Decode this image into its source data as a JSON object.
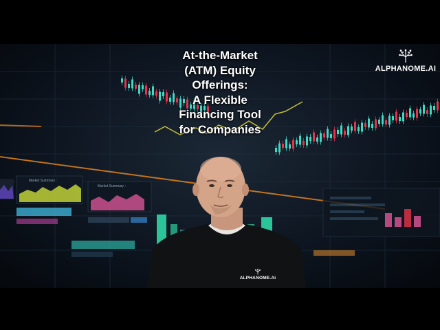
{
  "video": {
    "title_lines": [
      "At-the-Market",
      "(ATM) Equity",
      "Offerings:",
      "A Flexible",
      "Financing Tool",
      "for Companies"
    ],
    "brand_logo_text": "ALPHANOME.AI",
    "shirt_logo_text": "ALPHANOME.Ai"
  },
  "background": {
    "panel_1_label": "Market Summary :",
    "panel_2_label": "Market Summary :"
  },
  "colors": {
    "up_candle": "#3fd9c4",
    "down_candle": "#e8334a",
    "accent_line": "#d9d23a",
    "orange_trend": "#f08a1c"
  }
}
